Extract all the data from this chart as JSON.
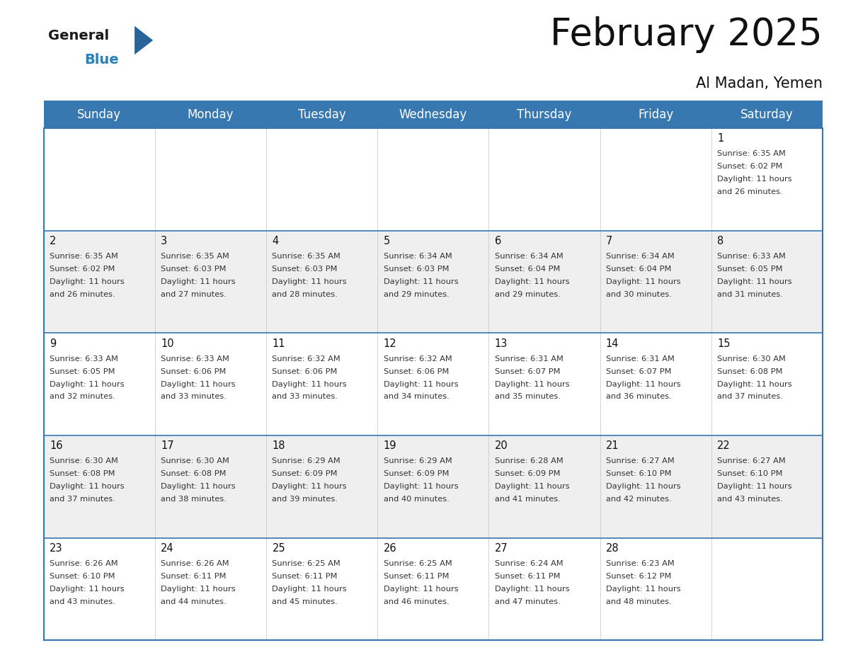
{
  "title": "February 2025",
  "subtitle": "Al Madan, Yemen",
  "header_color": "#3778b0",
  "header_text_color": "#ffffff",
  "cell_bg_white": "#ffffff",
  "cell_bg_gray": "#efefef",
  "day_names": [
    "Sunday",
    "Monday",
    "Tuesday",
    "Wednesday",
    "Thursday",
    "Friday",
    "Saturday"
  ],
  "title_fontsize": 38,
  "subtitle_fontsize": 15,
  "day_header_fontsize": 12,
  "cell_number_fontsize": 10.5,
  "cell_text_fontsize": 8.2,
  "logo_color_general": "#1a1a1a",
  "logo_color_blue": "#2980b9",
  "logo_triangle_color": "#2a6496",
  "grid_line_color": "#3778b0",
  "separator_color": "#cccccc",
  "days": [
    {
      "day": 1,
      "week_row": 0,
      "week_col": 6,
      "sunrise": "6:35 AM",
      "sunset": "6:02 PM",
      "daylight_hours": 11,
      "daylight_minutes": 26
    },
    {
      "day": 2,
      "week_row": 1,
      "week_col": 0,
      "sunrise": "6:35 AM",
      "sunset": "6:02 PM",
      "daylight_hours": 11,
      "daylight_minutes": 26
    },
    {
      "day": 3,
      "week_row": 1,
      "week_col": 1,
      "sunrise": "6:35 AM",
      "sunset": "6:03 PM",
      "daylight_hours": 11,
      "daylight_minutes": 27
    },
    {
      "day": 4,
      "week_row": 1,
      "week_col": 2,
      "sunrise": "6:35 AM",
      "sunset": "6:03 PM",
      "daylight_hours": 11,
      "daylight_minutes": 28
    },
    {
      "day": 5,
      "week_row": 1,
      "week_col": 3,
      "sunrise": "6:34 AM",
      "sunset": "6:03 PM",
      "daylight_hours": 11,
      "daylight_minutes": 29
    },
    {
      "day": 6,
      "week_row": 1,
      "week_col": 4,
      "sunrise": "6:34 AM",
      "sunset": "6:04 PM",
      "daylight_hours": 11,
      "daylight_minutes": 29
    },
    {
      "day": 7,
      "week_row": 1,
      "week_col": 5,
      "sunrise": "6:34 AM",
      "sunset": "6:04 PM",
      "daylight_hours": 11,
      "daylight_minutes": 30
    },
    {
      "day": 8,
      "week_row": 1,
      "week_col": 6,
      "sunrise": "6:33 AM",
      "sunset": "6:05 PM",
      "daylight_hours": 11,
      "daylight_minutes": 31
    },
    {
      "day": 9,
      "week_row": 2,
      "week_col": 0,
      "sunrise": "6:33 AM",
      "sunset": "6:05 PM",
      "daylight_hours": 11,
      "daylight_minutes": 32
    },
    {
      "day": 10,
      "week_row": 2,
      "week_col": 1,
      "sunrise": "6:33 AM",
      "sunset": "6:06 PM",
      "daylight_hours": 11,
      "daylight_minutes": 33
    },
    {
      "day": 11,
      "week_row": 2,
      "week_col": 2,
      "sunrise": "6:32 AM",
      "sunset": "6:06 PM",
      "daylight_hours": 11,
      "daylight_minutes": 33
    },
    {
      "day": 12,
      "week_row": 2,
      "week_col": 3,
      "sunrise": "6:32 AM",
      "sunset": "6:06 PM",
      "daylight_hours": 11,
      "daylight_minutes": 34
    },
    {
      "day": 13,
      "week_row": 2,
      "week_col": 4,
      "sunrise": "6:31 AM",
      "sunset": "6:07 PM",
      "daylight_hours": 11,
      "daylight_minutes": 35
    },
    {
      "day": 14,
      "week_row": 2,
      "week_col": 5,
      "sunrise": "6:31 AM",
      "sunset": "6:07 PM",
      "daylight_hours": 11,
      "daylight_minutes": 36
    },
    {
      "day": 15,
      "week_row": 2,
      "week_col": 6,
      "sunrise": "6:30 AM",
      "sunset": "6:08 PM",
      "daylight_hours": 11,
      "daylight_minutes": 37
    },
    {
      "day": 16,
      "week_row": 3,
      "week_col": 0,
      "sunrise": "6:30 AM",
      "sunset": "6:08 PM",
      "daylight_hours": 11,
      "daylight_minutes": 37
    },
    {
      "day": 17,
      "week_row": 3,
      "week_col": 1,
      "sunrise": "6:30 AM",
      "sunset": "6:08 PM",
      "daylight_hours": 11,
      "daylight_minutes": 38
    },
    {
      "day": 18,
      "week_row": 3,
      "week_col": 2,
      "sunrise": "6:29 AM",
      "sunset": "6:09 PM",
      "daylight_hours": 11,
      "daylight_minutes": 39
    },
    {
      "day": 19,
      "week_row": 3,
      "week_col": 3,
      "sunrise": "6:29 AM",
      "sunset": "6:09 PM",
      "daylight_hours": 11,
      "daylight_minutes": 40
    },
    {
      "day": 20,
      "week_row": 3,
      "week_col": 4,
      "sunrise": "6:28 AM",
      "sunset": "6:09 PM",
      "daylight_hours": 11,
      "daylight_minutes": 41
    },
    {
      "day": 21,
      "week_row": 3,
      "week_col": 5,
      "sunrise": "6:27 AM",
      "sunset": "6:10 PM",
      "daylight_hours": 11,
      "daylight_minutes": 42
    },
    {
      "day": 22,
      "week_row": 3,
      "week_col": 6,
      "sunrise": "6:27 AM",
      "sunset": "6:10 PM",
      "daylight_hours": 11,
      "daylight_minutes": 43
    },
    {
      "day": 23,
      "week_row": 4,
      "week_col": 0,
      "sunrise": "6:26 AM",
      "sunset": "6:10 PM",
      "daylight_hours": 11,
      "daylight_minutes": 43
    },
    {
      "day": 24,
      "week_row": 4,
      "week_col": 1,
      "sunrise": "6:26 AM",
      "sunset": "6:11 PM",
      "daylight_hours": 11,
      "daylight_minutes": 44
    },
    {
      "day": 25,
      "week_row": 4,
      "week_col": 2,
      "sunrise": "6:25 AM",
      "sunset": "6:11 PM",
      "daylight_hours": 11,
      "daylight_minutes": 45
    },
    {
      "day": 26,
      "week_row": 4,
      "week_col": 3,
      "sunrise": "6:25 AM",
      "sunset": "6:11 PM",
      "daylight_hours": 11,
      "daylight_minutes": 46
    },
    {
      "day": 27,
      "week_row": 4,
      "week_col": 4,
      "sunrise": "6:24 AM",
      "sunset": "6:11 PM",
      "daylight_hours": 11,
      "daylight_minutes": 47
    },
    {
      "day": 28,
      "week_row": 4,
      "week_col": 5,
      "sunrise": "6:23 AM",
      "sunset": "6:12 PM",
      "daylight_hours": 11,
      "daylight_minutes": 48
    }
  ]
}
